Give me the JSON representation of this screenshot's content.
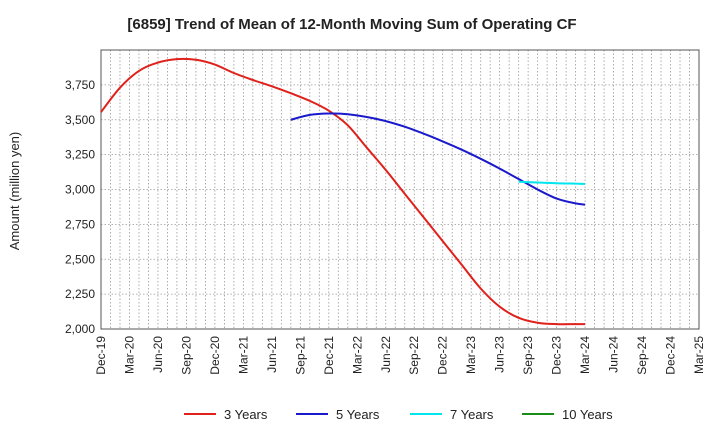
{
  "chart_data": {
    "type": "line",
    "title": "[6859]  Trend of Mean of 12-Month Moving Sum of Operating CF",
    "xlabel": "",
    "ylabel": "Amount (million yen)",
    "ylim": [
      2000,
      4000
    ],
    "yticks": [
      2000,
      2250,
      2500,
      2750,
      3000,
      3250,
      3500,
      3750
    ],
    "ytick_labels": [
      "2,000",
      "2,250",
      "2,500",
      "2,750",
      "3,000",
      "3,250",
      "3,500",
      "3,750"
    ],
    "x_range_months": [
      0,
      63
    ],
    "x_tick_labels": [
      "Dec-19",
      "Mar-20",
      "Jun-20",
      "Sep-20",
      "Dec-20",
      "Mar-21",
      "Jun-21",
      "Sep-21",
      "Dec-21",
      "Mar-22",
      "Jun-22",
      "Sep-22",
      "Dec-22",
      "Mar-23",
      "Jun-23",
      "Sep-23",
      "Dec-23",
      "Mar-24",
      "Jun-24",
      "Sep-24",
      "Dec-24",
      "Mar-25"
    ],
    "grid": true,
    "legend_position": "bottom",
    "series": [
      {
        "name": "3 Years",
        "color": "#e0201a",
        "x": [
          0,
          2,
          4,
          6,
          8,
          10,
          12,
          14,
          16,
          18,
          20,
          22,
          24,
          26,
          28,
          30,
          32,
          34,
          36,
          38,
          40,
          42,
          44,
          46,
          48,
          50,
          51
        ],
        "y": [
          3555,
          3730,
          3850,
          3910,
          3935,
          3930,
          3895,
          3835,
          3785,
          3740,
          3690,
          3635,
          3565,
          3460,
          3300,
          3140,
          2970,
          2800,
          2630,
          2460,
          2290,
          2160,
          2080,
          2045,
          2035,
          2035,
          2035
        ]
      },
      {
        "name": "5 Years",
        "color": "#1a1acc",
        "x": [
          20,
          22,
          24,
          26,
          28,
          30,
          32,
          34,
          36,
          38,
          40,
          42,
          44,
          46,
          48,
          50,
          51
        ],
        "y": [
          3500,
          3535,
          3545,
          3540,
          3520,
          3490,
          3450,
          3400,
          3345,
          3285,
          3220,
          3150,
          3075,
          3000,
          2935,
          2900,
          2892
        ]
      },
      {
        "name": "7 Years",
        "color": "#00e5ee",
        "x": [
          44,
          46,
          48,
          50,
          51
        ],
        "y": [
          3055,
          3050,
          3045,
          3042,
          3040
        ]
      },
      {
        "name": "10 Years",
        "color": "#1a8c1a",
        "x": [],
        "y": []
      }
    ]
  }
}
